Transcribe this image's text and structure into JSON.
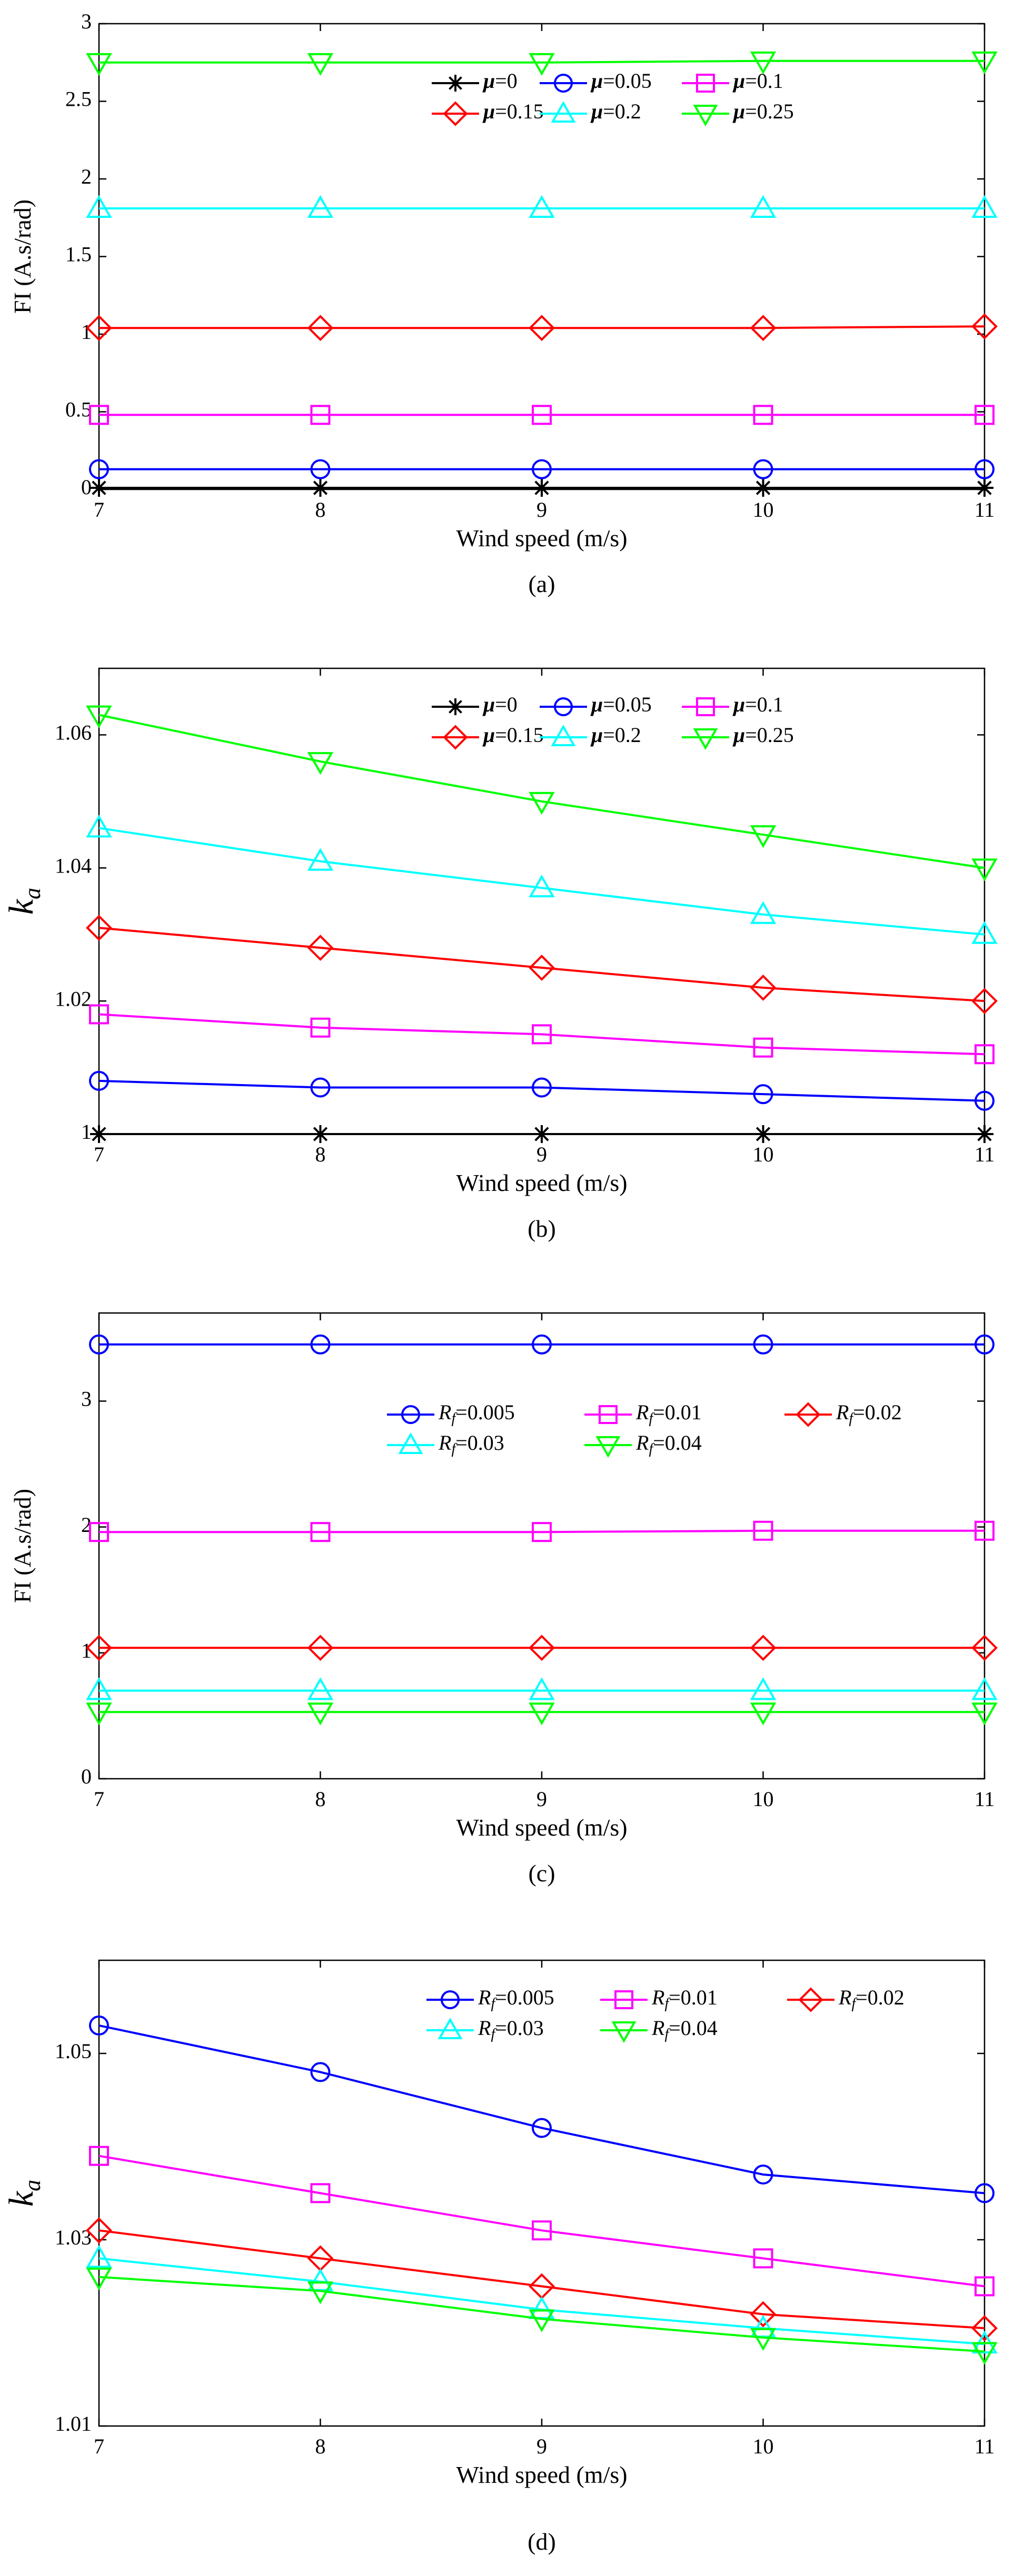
{
  "chart_data": [
    {
      "type": "line",
      "caption": "(a)",
      "xlabel": "Wind speed (m/s)",
      "ylabel": "FI (A.s/rad)",
      "x": [
        7,
        8,
        9,
        10,
        11
      ],
      "xlim": [
        7,
        11
      ],
      "xticks": [
        "7",
        "8",
        "9",
        "10",
        "11"
      ],
      "ylim": [
        0,
        3
      ],
      "yticks": [
        {
          "value": 0,
          "label": "0"
        },
        {
          "value": 0.5,
          "label": "0.5"
        },
        {
          "value": 1,
          "label": "1"
        },
        {
          "value": 1.5,
          "label": "1.5"
        },
        {
          "value": 2,
          "label": "2"
        },
        {
          "value": 2.5,
          "label": "2.5"
        },
        {
          "value": 3,
          "label": "3"
        }
      ],
      "legend_position": "top-right",
      "legend_columns": 3,
      "series": [
        {
          "sym": "μ",
          "eq": "=0",
          "marker": "star",
          "color": "#000000",
          "values": [
            0.01,
            0.01,
            0.01,
            0.01,
            0.01
          ]
        },
        {
          "sym": "μ",
          "eq": "=0.05",
          "marker": "circle",
          "color": "#0000ff",
          "values": [
            0.13,
            0.13,
            0.13,
            0.13,
            0.13
          ]
        },
        {
          "sym": "μ",
          "eq": "=0.1",
          "marker": "square",
          "color": "#ff00ff",
          "values": [
            0.48,
            0.48,
            0.48,
            0.48,
            0.48
          ]
        },
        {
          "sym": "μ",
          "eq": "=0.15",
          "marker": "diamond",
          "color": "#ff0000",
          "values": [
            1.04,
            1.04,
            1.04,
            1.04,
            1.05
          ]
        },
        {
          "sym": "μ",
          "eq": "=0.2",
          "marker": "triangle-up",
          "color": "#00ffff",
          "values": [
            1.81,
            1.81,
            1.81,
            1.81,
            1.81
          ]
        },
        {
          "sym": "μ",
          "eq": "=0.25",
          "marker": "triangle-down",
          "color": "#00ff00",
          "values": [
            2.75,
            2.75,
            2.75,
            2.76,
            2.76
          ]
        }
      ]
    },
    {
      "type": "line",
      "caption": "(b)",
      "xlabel": "Wind speed (m/s)",
      "ylabel_symbol": "k",
      "ylabel_sub": "a",
      "x": [
        7,
        8,
        9,
        10,
        11
      ],
      "xlim": [
        7,
        11
      ],
      "xticks": [
        "7",
        "8",
        "9",
        "10",
        "11"
      ],
      "ylim": [
        1,
        1.07
      ],
      "yticks": [
        {
          "value": 1,
          "label": "1"
        },
        {
          "value": 1.02,
          "label": "1.02"
        },
        {
          "value": 1.04,
          "label": "1.04"
        },
        {
          "value": 1.06,
          "label": "1.06"
        }
      ],
      "legend_position": "top-right",
      "legend_columns": 3,
      "series": [
        {
          "sym": "μ",
          "eq": "=0",
          "marker": "star",
          "color": "#000000",
          "values": [
            1.0,
            1.0,
            1.0,
            1.0,
            1.0
          ]
        },
        {
          "sym": "μ",
          "eq": "=0.05",
          "marker": "circle",
          "color": "#0000ff",
          "values": [
            1.008,
            1.007,
            1.007,
            1.006,
            1.005
          ]
        },
        {
          "sym": "μ",
          "eq": "=0.1",
          "marker": "square",
          "color": "#ff00ff",
          "values": [
            1.018,
            1.016,
            1.015,
            1.013,
            1.012
          ]
        },
        {
          "sym": "μ",
          "eq": "=0.15",
          "marker": "diamond",
          "color": "#ff0000",
          "values": [
            1.031,
            1.028,
            1.025,
            1.022,
            1.02
          ]
        },
        {
          "sym": "μ",
          "eq": "=0.2",
          "marker": "triangle-up",
          "color": "#00ffff",
          "values": [
            1.046,
            1.041,
            1.037,
            1.033,
            1.03
          ]
        },
        {
          "sym": "μ",
          "eq": "=0.25",
          "marker": "triangle-down",
          "color": "#00ff00",
          "values": [
            1.063,
            1.056,
            1.05,
            1.045,
            1.04
          ]
        }
      ]
    },
    {
      "type": "line",
      "caption": "(c)",
      "xlabel": "Wind speed (m/s)",
      "ylabel": "FI (A.s/rad)",
      "x": [
        7,
        8,
        9,
        10,
        11
      ],
      "xlim": [
        7,
        11
      ],
      "xticks": [
        "7",
        "8",
        "9",
        "10",
        "11"
      ],
      "ylim": [
        0,
        3.7
      ],
      "yticks": [
        {
          "value": 0,
          "label": "0"
        },
        {
          "value": 1,
          "label": "1"
        },
        {
          "value": 2,
          "label": "2"
        },
        {
          "value": 3,
          "label": "3"
        }
      ],
      "legend_position": "top-right",
      "legend_columns": 3,
      "series": [
        {
          "sym": "R",
          "sub": "f",
          "eq": "=0.005",
          "marker": "circle",
          "color": "#0000ff",
          "values": [
            3.45,
            3.45,
            3.45,
            3.45,
            3.45
          ]
        },
        {
          "sym": "R",
          "sub": "f",
          "eq": "=0.01",
          "marker": "square",
          "color": "#ff00ff",
          "values": [
            1.96,
            1.96,
            1.96,
            1.97,
            1.97
          ]
        },
        {
          "sym": "R",
          "sub": "f",
          "eq": "=0.02",
          "marker": "diamond",
          "color": "#ff0000",
          "values": [
            1.04,
            1.04,
            1.04,
            1.04,
            1.04
          ]
        },
        {
          "sym": "R",
          "sub": "f",
          "eq": "=0.03",
          "marker": "triangle-up",
          "color": "#00ffff",
          "values": [
            0.7,
            0.7,
            0.7,
            0.7,
            0.7
          ]
        },
        {
          "sym": "R",
          "sub": "f",
          "eq": "=0.04",
          "marker": "triangle-down",
          "color": "#00ff00",
          "values": [
            0.53,
            0.53,
            0.53,
            0.53,
            0.53
          ]
        }
      ]
    },
    {
      "type": "line",
      "caption": "(d)",
      "xlabel": "Wind speed (m/s)",
      "ylabel_symbol": "k",
      "ylabel_sub": "a",
      "x": [
        7,
        8,
        9,
        10,
        11
      ],
      "xlim": [
        7,
        11
      ],
      "xticks": [
        "7",
        "8",
        "9",
        "10",
        "11"
      ],
      "ylim": [
        1.01,
        1.06
      ],
      "yticks": [
        {
          "value": 1.01,
          "label": "1.01"
        },
        {
          "value": 1.03,
          "label": "1.03"
        },
        {
          "value": 1.05,
          "label": "1.05"
        }
      ],
      "legend_position": "top-right",
      "legend_columns": 3,
      "series": [
        {
          "sym": "R",
          "sub": "f",
          "eq": "=0.005",
          "marker": "circle",
          "color": "#0000ff",
          "values": [
            1.053,
            1.048,
            1.042,
            1.037,
            1.035
          ]
        },
        {
          "sym": "R",
          "sub": "f",
          "eq": "=0.01",
          "marker": "square",
          "color": "#ff00ff",
          "values": [
            1.039,
            1.035,
            1.031,
            1.028,
            1.025
          ]
        },
        {
          "sym": "R",
          "sub": "f",
          "eq": "=0.02",
          "marker": "diamond",
          "color": "#ff0000",
          "values": [
            1.031,
            1.028,
            1.025,
            1.022,
            1.0205
          ]
        },
        {
          "sym": "R",
          "sub": "f",
          "eq": "=0.03",
          "marker": "triangle-up",
          "color": "#00ffff",
          "values": [
            1.028,
            1.0255,
            1.0225,
            1.0205,
            1.0188
          ]
        },
        {
          "sym": "R",
          "sub": "f",
          "eq": "=0.04",
          "marker": "triangle-down",
          "color": "#00ff00",
          "values": [
            1.026,
            1.0245,
            1.0215,
            1.0195,
            1.018
          ]
        }
      ]
    }
  ]
}
